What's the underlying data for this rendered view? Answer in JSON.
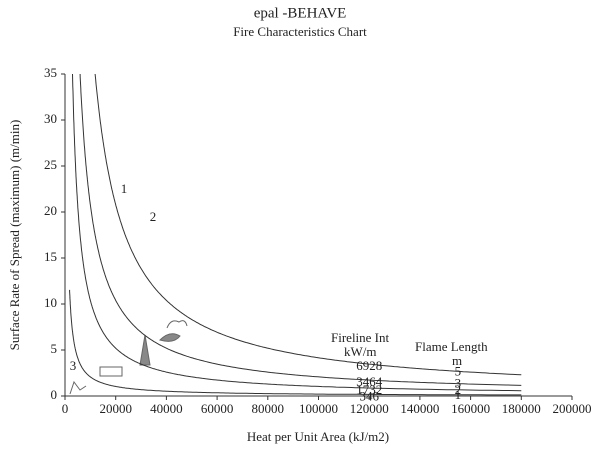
{
  "chart_data": {
    "type": "fire-characteristics",
    "title": "epal -BEHAVE",
    "subtitle": "Fire Characteristics Chart",
    "x_label": "Heat per Unit Area (kJ/m2)",
    "y_label": "Surface Rate of Spread (maximum) (m/min)",
    "xlim": [
      0,
      200000
    ],
    "xticks": [
      0,
      20000,
      40000,
      60000,
      80000,
      100000,
      120000,
      140000,
      160000,
      180000,
      200000
    ],
    "ylim": [
      0,
      35
    ],
    "yticks": [
      0,
      5,
      10,
      15,
      20,
      25,
      30,
      35
    ],
    "intensity_header": "Fireline Int",
    "intensity_unit": "kW/m",
    "flame_header": "Flame Length",
    "flame_unit": "m",
    "curves": [
      {
        "intensity": 6928,
        "flame_length": 5
      },
      {
        "intensity": 3464,
        "flame_length": 3
      },
      {
        "intensity": 1732,
        "flame_length": 2
      },
      {
        "intensity": 346,
        "flame_length": 1
      }
    ],
    "zone_labels": [
      "1",
      "2",
      "3"
    ],
    "color": "#333333"
  }
}
